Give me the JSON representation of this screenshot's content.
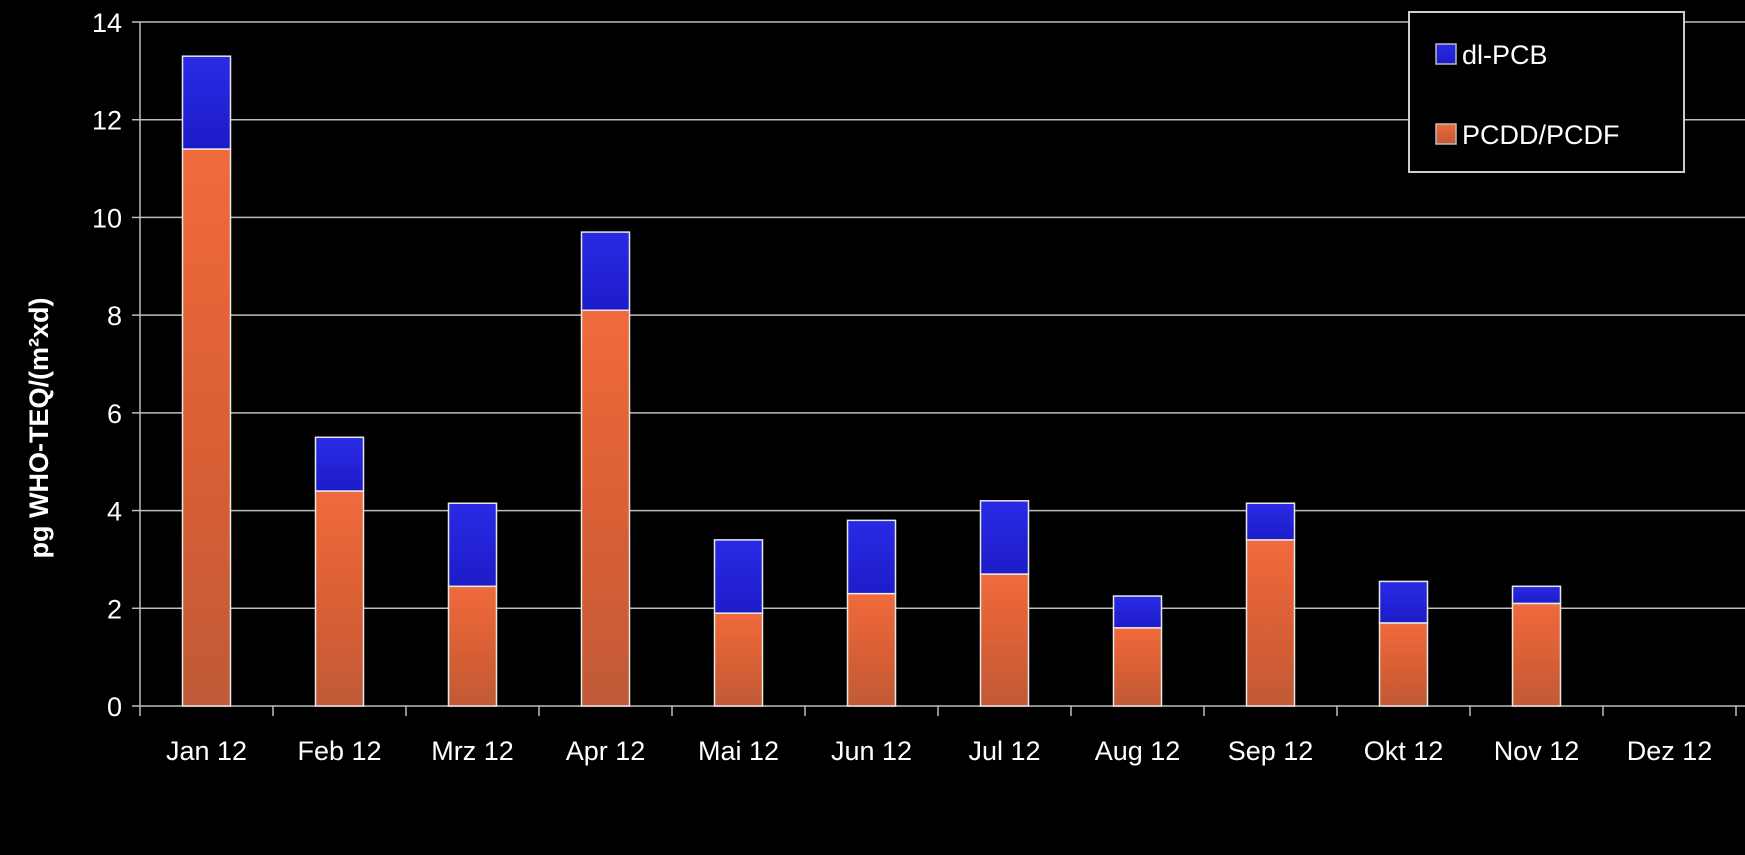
{
  "chart_data": {
    "type": "bar",
    "stacked": true,
    "categories": [
      "Jan 12",
      "Feb 12",
      "Mrz 12",
      "Apr 12",
      "Mai 12",
      "Jun 12",
      "Jul 12",
      "Aug 12",
      "Sep 12",
      "Okt 12",
      "Nov 12",
      "Dez 12"
    ],
    "series": [
      {
        "name": "PCDD/PCDF",
        "color": "#e0663a",
        "values": [
          11.4,
          4.4,
          2.45,
          8.1,
          1.9,
          2.3,
          2.7,
          1.6,
          3.4,
          1.7,
          2.1,
          0
        ]
      },
      {
        "name": "dl-PCB",
        "color": "#2020d8",
        "values": [
          1.9,
          1.1,
          1.7,
          1.6,
          1.5,
          1.5,
          1.5,
          0.65,
          0.75,
          0.85,
          0.35,
          0
        ]
      }
    ],
    "legend_order": [
      "dl-PCB",
      "PCDD/PCDF"
    ],
    "title": "",
    "xlabel": "",
    "ylabel": "pg WHO-TEQ/(m²xd)",
    "ylim": [
      0,
      14
    ],
    "yticks": [
      0,
      2,
      4,
      6,
      8,
      10,
      12,
      14
    ],
    "grid": true,
    "legend_position": "top-right"
  }
}
